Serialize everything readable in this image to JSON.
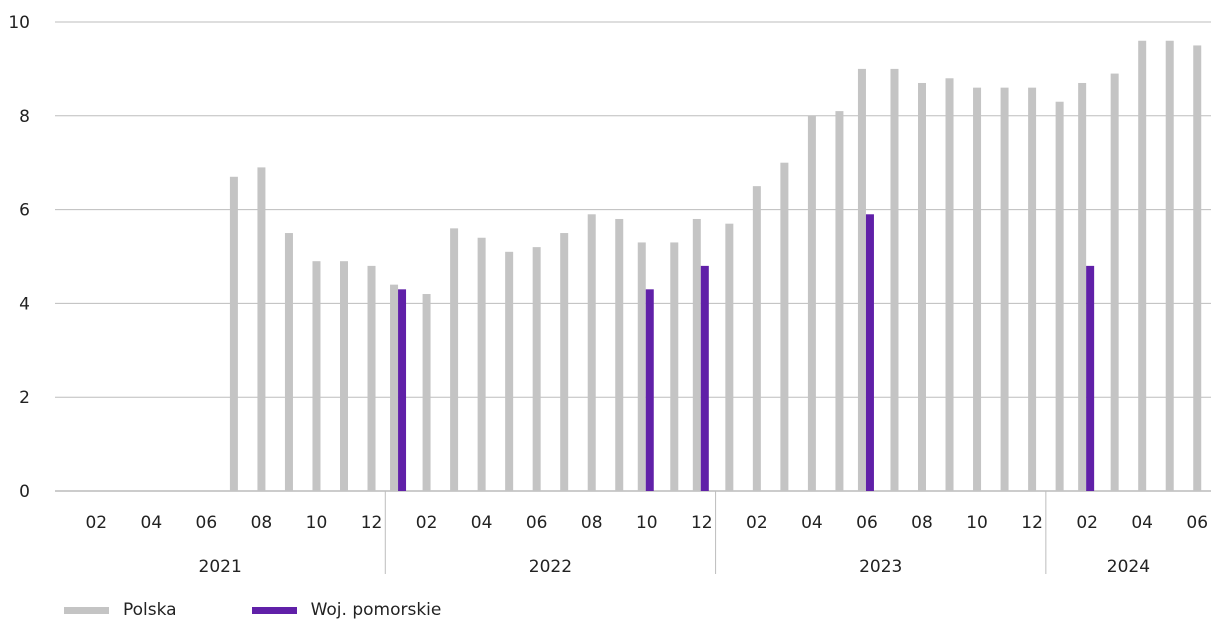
{
  "chart_data": {
    "type": "bar",
    "ylim": [
      0,
      10
    ],
    "yticks": [
      "0",
      "2",
      "4",
      "6",
      "8",
      "10"
    ],
    "grid": true,
    "legend_position": "bottom-left",
    "months": [
      "2021-01",
      "2021-02",
      "2021-03",
      "2021-04",
      "2021-05",
      "2021-06",
      "2021-07",
      "2021-08",
      "2021-09",
      "2021-10",
      "2021-11",
      "2021-12",
      "2022-01",
      "2022-02",
      "2022-03",
      "2022-04",
      "2022-05",
      "2022-06",
      "2022-07",
      "2022-08",
      "2022-09",
      "2022-10",
      "2022-11",
      "2022-12",
      "2023-01",
      "2023-02",
      "2023-03",
      "2023-04",
      "2023-05",
      "2023-06",
      "2023-07",
      "2023-08",
      "2023-09",
      "2023-10",
      "2023-11",
      "2023-12",
      "2024-01",
      "2024-02",
      "2024-03",
      "2024-04",
      "2024-05",
      "2024-06"
    ],
    "month_labels": [
      "",
      "02",
      "",
      "04",
      "",
      "06",
      "",
      "08",
      "",
      "10",
      "",
      "12",
      "",
      "02",
      "",
      "04",
      "",
      "06",
      "",
      "08",
      "",
      "10",
      "",
      "12",
      "",
      "02",
      "",
      "04",
      "",
      "06",
      "",
      "08",
      "",
      "10",
      "",
      "12",
      "",
      "02",
      "",
      "04",
      "",
      "06"
    ],
    "years": [
      "2021",
      "2022",
      "2023",
      "2024"
    ],
    "series": [
      {
        "name": "Polska",
        "color": "#c4c4c4",
        "values": [
          null,
          null,
          null,
          null,
          null,
          null,
          6.7,
          6.9,
          5.5,
          4.9,
          4.9,
          4.8,
          4.4,
          4.2,
          5.6,
          5.4,
          5.1,
          5.2,
          5.5,
          5.9,
          5.8,
          5.3,
          5.3,
          5.8,
          5.7,
          6.5,
          7.0,
          8.0,
          8.1,
          9.0,
          9.0,
          8.7,
          8.8,
          8.6,
          8.6,
          8.6,
          8.3,
          8.7,
          8.9,
          9.6,
          9.6,
          9.5
        ]
      },
      {
        "name": "Woj. pomorskie",
        "color": "#6020a8",
        "values": [
          null,
          null,
          null,
          null,
          null,
          null,
          null,
          null,
          null,
          null,
          null,
          null,
          4.3,
          null,
          null,
          null,
          null,
          null,
          null,
          null,
          null,
          4.3,
          null,
          4.8,
          null,
          null,
          null,
          null,
          null,
          5.9,
          null,
          null,
          null,
          null,
          null,
          null,
          null,
          4.8,
          null,
          null,
          null,
          null
        ]
      }
    ]
  }
}
